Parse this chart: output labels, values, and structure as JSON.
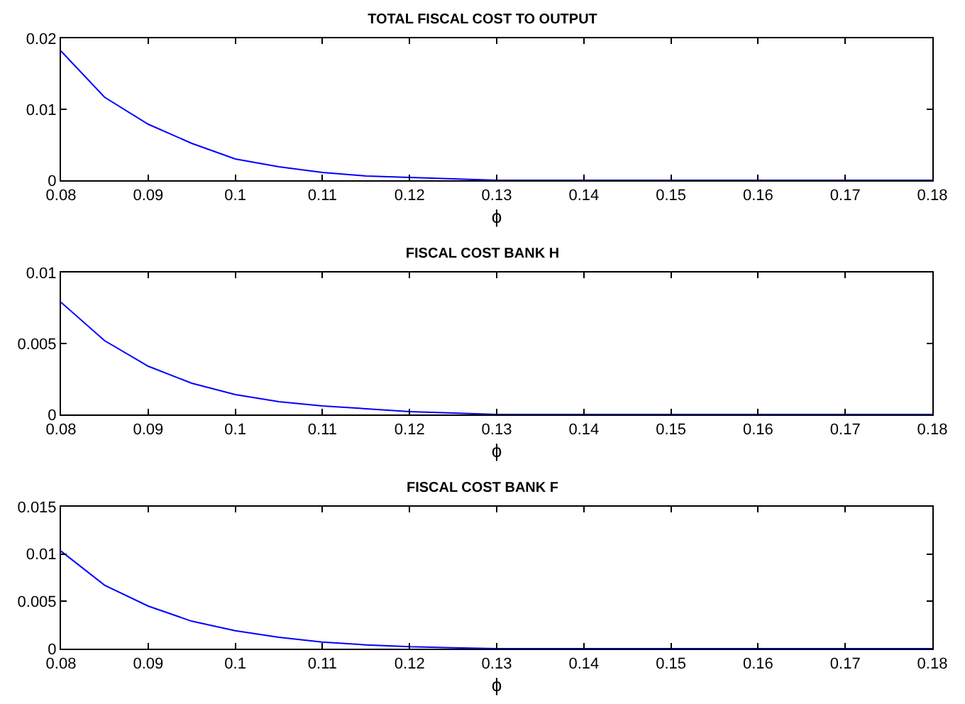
{
  "chart_data": [
    {
      "type": "line",
      "title": "TOTAL FISCAL COST TO OUTPUT",
      "xlabel": "ϕ",
      "x": [
        0.08,
        0.085,
        0.09,
        0.095,
        0.1,
        0.105,
        0.11,
        0.115,
        0.12,
        0.125,
        0.13,
        0.14,
        0.15,
        0.16,
        0.17,
        0.18
      ],
      "series": [
        {
          "color": "#0000ff",
          "values": [
            0.0182,
            0.0117,
            0.0079,
            0.0052,
            0.003,
            0.0019,
            0.0011,
            0.0006,
            0.0004,
            0.0002,
            0,
            0,
            0,
            0,
            0,
            0
          ]
        }
      ],
      "xlim": [
        0.08,
        0.18
      ],
      "xticks": [
        0.08,
        0.09,
        0.1,
        0.11,
        0.12,
        0.13,
        0.14,
        0.15,
        0.16,
        0.17,
        0.18
      ],
      "ylim": [
        0,
        0.02
      ],
      "yticks": [
        0,
        0.01,
        0.02
      ],
      "grid": false
    },
    {
      "type": "line",
      "title": "FISCAL COST BANK H",
      "xlabel": "ϕ",
      "x": [
        0.08,
        0.085,
        0.09,
        0.095,
        0.1,
        0.105,
        0.11,
        0.115,
        0.12,
        0.125,
        0.13,
        0.14,
        0.15,
        0.16,
        0.17,
        0.18
      ],
      "series": [
        {
          "color": "#0000ff",
          "values": [
            0.0079,
            0.0052,
            0.0034,
            0.0022,
            0.0014,
            0.0009,
            0.0006,
            0.0004,
            0.0002,
            0.0001,
            0,
            0,
            0,
            0,
            0,
            0
          ]
        }
      ],
      "xlim": [
        0.08,
        0.18
      ],
      "xticks": [
        0.08,
        0.09,
        0.1,
        0.11,
        0.12,
        0.13,
        0.14,
        0.15,
        0.16,
        0.17,
        0.18
      ],
      "ylim": [
        0,
        0.01
      ],
      "yticks": [
        0,
        0.005,
        0.01
      ],
      "grid": false
    },
    {
      "type": "line",
      "title": "FISCAL COST BANK F",
      "xlabel": "ϕ",
      "x": [
        0.08,
        0.085,
        0.09,
        0.095,
        0.1,
        0.105,
        0.11,
        0.115,
        0.12,
        0.125,
        0.13,
        0.14,
        0.15,
        0.16,
        0.17,
        0.18
      ],
      "series": [
        {
          "color": "#0000ff",
          "values": [
            0.0103,
            0.0067,
            0.0045,
            0.0029,
            0.0019,
            0.0012,
            0.0007,
            0.0004,
            0.0002,
            0.0001,
            0,
            0,
            0,
            0,
            0,
            0
          ]
        }
      ],
      "xlim": [
        0.08,
        0.18
      ],
      "xticks": [
        0.08,
        0.09,
        0.1,
        0.11,
        0.12,
        0.13,
        0.14,
        0.15,
        0.16,
        0.17,
        0.18
      ],
      "ylim": [
        0,
        0.015
      ],
      "yticks": [
        0,
        0.005,
        0.01,
        0.015
      ],
      "grid": false
    }
  ]
}
